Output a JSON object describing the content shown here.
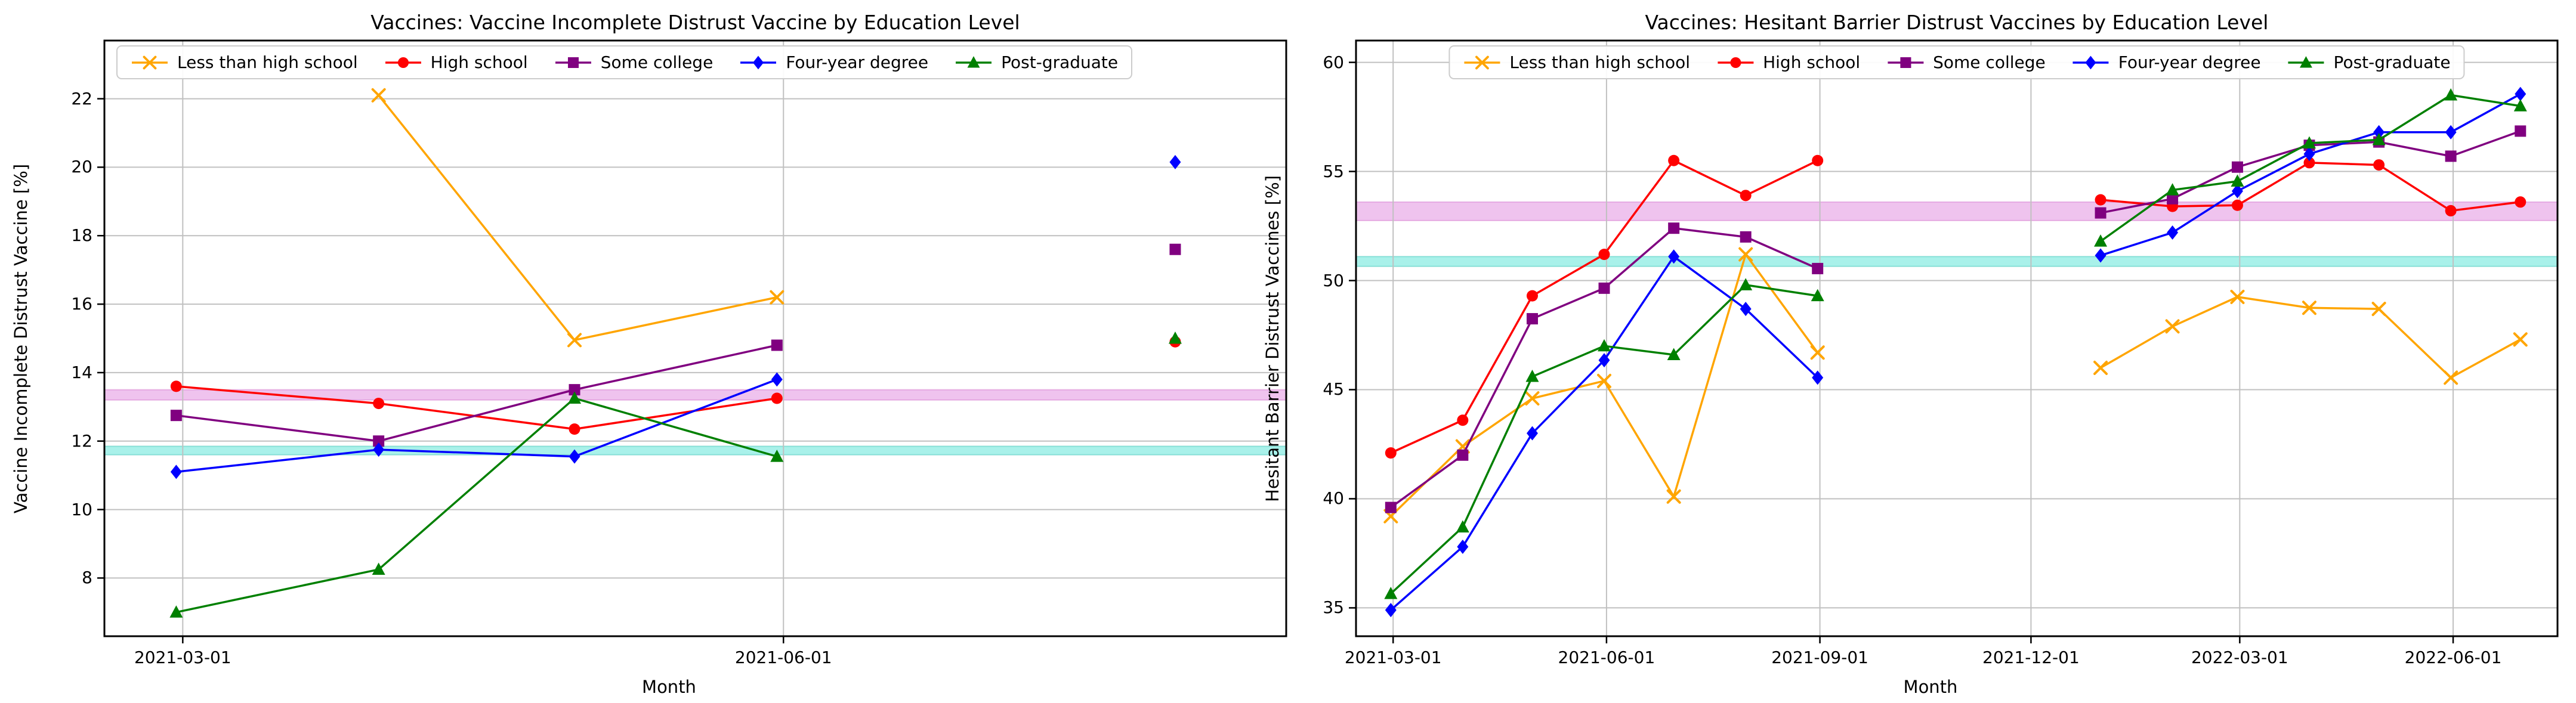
{
  "figure": {
    "background": "#ffffff",
    "series_names": [
      "Less than high school",
      "High school",
      "Some college",
      "Four-year degree",
      "Post-graduate"
    ],
    "series_colors": [
      "#FFA500",
      "#FF0000",
      "#800080",
      "#0000FF",
      "#008000"
    ],
    "series_markers": [
      "x",
      "circle",
      "square",
      "diamond",
      "triangle"
    ]
  },
  "chart_data": [
    {
      "type": "line",
      "title": "Vaccines: Vaccine Incomplete Distrust Vaccine by Education Level",
      "xlabel": "Month",
      "ylabel": "Vaccine Incomplete Distrust Vaccine [%]",
      "legend_position": "upper-left",
      "grid": true,
      "ylim": [
        6.3,
        23.7
      ],
      "yticks": [
        8,
        10,
        12,
        14,
        16,
        18,
        20,
        22
      ],
      "xlim": [
        "2021-02-17",
        "2021-08-17"
      ],
      "xticks": [
        "2021-03-01",
        "2021-06-01"
      ],
      "x": [
        "2021-02-28",
        "2021-03-31",
        "2021-04-30",
        "2021-05-31",
        "2021-06-30",
        "2021-07-31"
      ],
      "series": [
        {
          "name": "Less than high school",
          "color": "#FFA500",
          "marker": "x",
          "values": [
            null,
            22.1,
            14.95,
            16.2,
            null,
            null
          ]
        },
        {
          "name": "High school",
          "color": "#FF0000",
          "marker": "circle",
          "values": [
            13.6,
            13.1,
            12.35,
            13.25,
            null,
            14.9
          ]
        },
        {
          "name": "Some college",
          "color": "#800080",
          "marker": "square",
          "values": [
            12.75,
            12.0,
            13.5,
            14.8,
            null,
            17.6
          ]
        },
        {
          "name": "Four-year degree",
          "color": "#0000FF",
          "marker": "diamond",
          "values": [
            11.1,
            11.75,
            11.55,
            13.8,
            null,
            20.15
          ]
        },
        {
          "name": "Post-graduate",
          "color": "#008000",
          "marker": "triangle",
          "values": [
            7.0,
            8.25,
            13.25,
            11.55,
            null,
            15.0
          ]
        }
      ],
      "bands": [
        {
          "name": "overall-average-band",
          "from": 13.2,
          "to": 13.5,
          "fill": "rgba(218,112,214,0.42)",
          "edge": "rgba(200,80,190,0.35)"
        },
        {
          "name": "reference-band",
          "from": 11.6,
          "to": 11.85,
          "fill": "rgba(64,224,208,0.45)",
          "edge": "rgba(40,190,175,0.40)"
        }
      ]
    },
    {
      "type": "line",
      "title": "Vaccines: Hesitant Barrier Distrust Vaccines by Education Level",
      "xlabel": "Month",
      "ylabel": "Hesitant Barrier Distrust Vaccines [%]",
      "legend_position": "upper-center",
      "grid": true,
      "ylim": [
        33.7,
        61.0
      ],
      "yticks": [
        35,
        40,
        45,
        50,
        55,
        60
      ],
      "xlim": [
        "2021-02-13",
        "2022-07-16"
      ],
      "xticks": [
        "2021-03-01",
        "2021-06-01",
        "2021-09-01",
        "2021-12-01",
        "2022-03-01",
        "2022-06-01"
      ],
      "x": [
        "2021-02-28",
        "2021-03-31",
        "2021-04-30",
        "2021-05-31",
        "2021-06-30",
        "2021-07-31",
        "2021-08-31",
        "2021-09-30",
        "2021-10-31",
        "2021-11-30",
        "2021-12-31",
        "2022-01-31",
        "2022-02-28",
        "2022-03-31",
        "2022-04-30",
        "2022-05-31",
        "2022-06-30"
      ],
      "series": [
        {
          "name": "Less than high school",
          "color": "#FFA500",
          "marker": "x",
          "values": [
            39.2,
            42.4,
            44.6,
            45.4,
            40.1,
            51.2,
            46.7,
            null,
            null,
            null,
            46.0,
            47.9,
            49.25,
            48.75,
            48.7,
            45.55,
            47.3
          ]
        },
        {
          "name": "High school",
          "color": "#FF0000",
          "marker": "circle",
          "values": [
            42.1,
            43.6,
            49.3,
            51.2,
            55.5,
            53.9,
            55.5,
            null,
            null,
            null,
            53.7,
            53.4,
            53.45,
            55.4,
            55.3,
            53.2,
            53.6
          ]
        },
        {
          "name": "Some college",
          "color": "#800080",
          "marker": "square",
          "values": [
            39.6,
            42.0,
            48.25,
            49.65,
            52.4,
            52.0,
            50.55,
            null,
            null,
            null,
            53.1,
            53.75,
            55.2,
            56.2,
            56.35,
            55.7,
            56.85
          ]
        },
        {
          "name": "Four-year degree",
          "color": "#0000FF",
          "marker": "diamond",
          "values": [
            34.9,
            37.8,
            43.0,
            46.35,
            51.1,
            48.7,
            45.55,
            null,
            null,
            null,
            51.15,
            52.2,
            54.1,
            55.8,
            56.8,
            56.8,
            58.55
          ]
        },
        {
          "name": "Post-graduate",
          "color": "#008000",
          "marker": "triangle",
          "values": [
            35.65,
            38.7,
            45.6,
            47.0,
            46.6,
            49.8,
            49.3,
            null,
            null,
            null,
            51.8,
            54.15,
            54.55,
            56.3,
            56.45,
            58.5,
            58.0
          ]
        }
      ],
      "bands": [
        {
          "name": "overall-average-band",
          "from": 52.75,
          "to": 53.6,
          "fill": "rgba(218,112,214,0.42)",
          "edge": "rgba(200,80,190,0.35)"
        },
        {
          "name": "reference-band",
          "from": 50.65,
          "to": 51.1,
          "fill": "rgba(64,224,208,0.45)",
          "edge": "rgba(40,190,175,0.40)"
        }
      ]
    }
  ]
}
